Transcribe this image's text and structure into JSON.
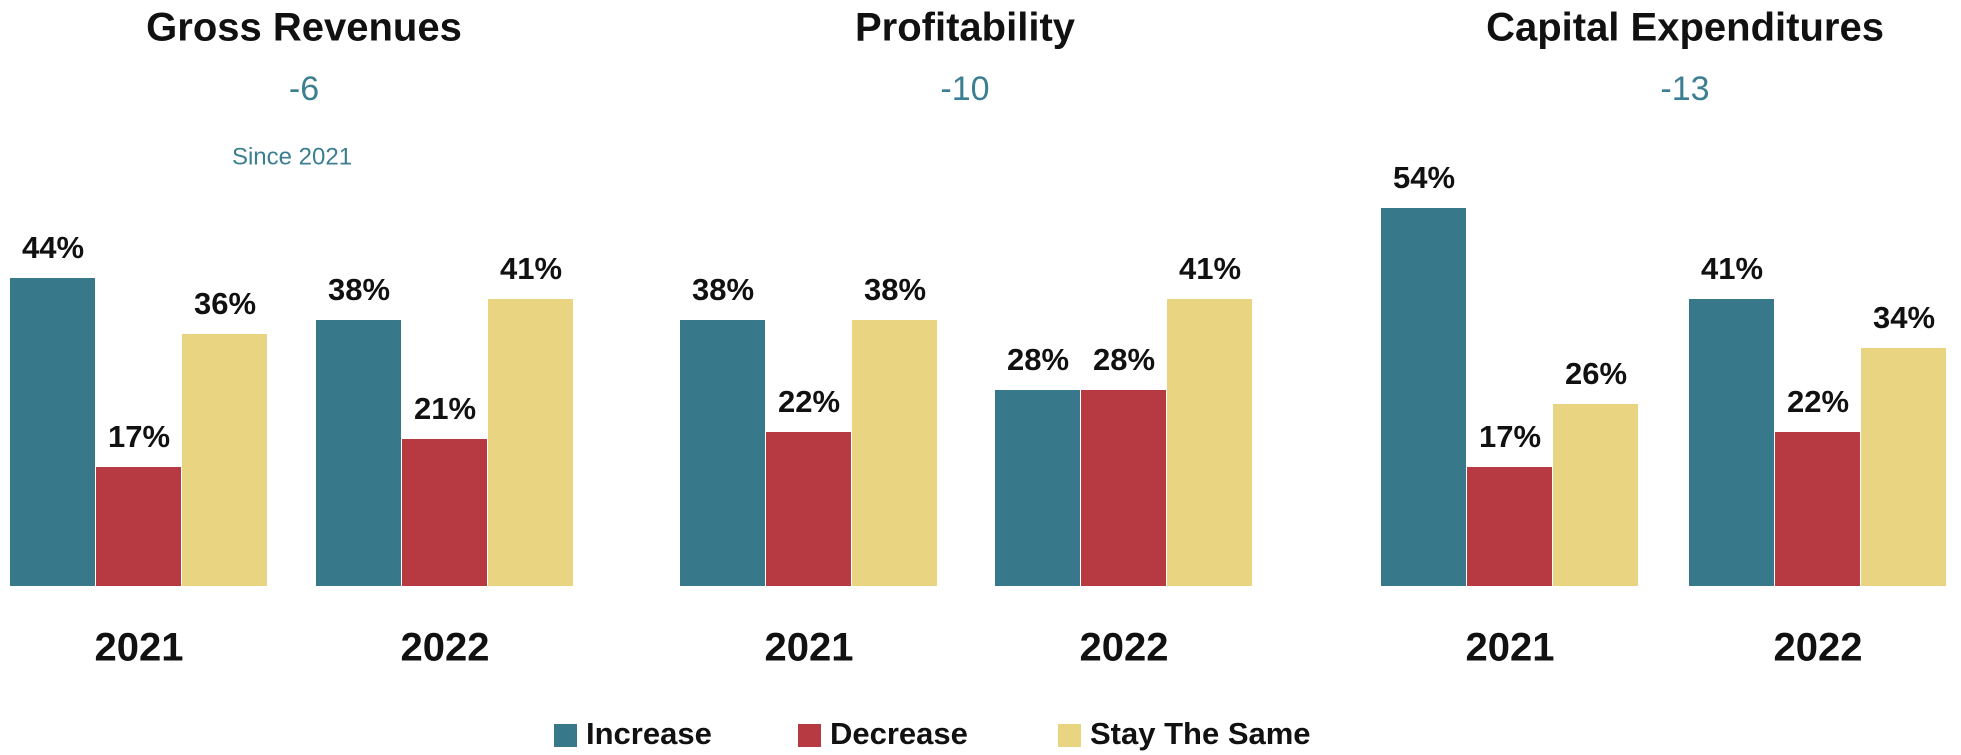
{
  "chart_data": [
    {
      "type": "bar",
      "title": "Gross Revenues",
      "subtitle": "-6",
      "annotation": "Since 2021",
      "categories": [
        "2021",
        "2022"
      ],
      "series": [
        {
          "name": "Increase",
          "color": "#37788a",
          "values": [
            44,
            38
          ],
          "value_labels": [
            "44%",
            "38%"
          ]
        },
        {
          "name": "Decrease",
          "color": "#b73a42",
          "values": [
            17,
            21
          ],
          "value_labels": [
            "17%",
            "21%"
          ]
        },
        {
          "name": "Stay The Same",
          "color": "#e8d481",
          "values": [
            36,
            41
          ],
          "value_labels": [
            "36%",
            "41%"
          ]
        }
      ]
    },
    {
      "type": "bar",
      "title": "Profitability",
      "subtitle": "-10",
      "categories": [
        "2021",
        "2022"
      ],
      "series": [
        {
          "name": "Increase",
          "color": "#37788a",
          "values": [
            38,
            28
          ],
          "value_labels": [
            "38%",
            "28%"
          ]
        },
        {
          "name": "Decrease",
          "color": "#b73a42",
          "values": [
            22,
            28
          ],
          "value_labels": [
            "22%",
            "28%"
          ]
        },
        {
          "name": "Stay The Same",
          "color": "#e8d481",
          "values": [
            38,
            41
          ],
          "value_labels": [
            "38%",
            "41%"
          ]
        }
      ]
    },
    {
      "type": "bar",
      "title": "Capital Expenditures",
      "subtitle": "-13",
      "categories": [
        "2021",
        "2022"
      ],
      "series": [
        {
          "name": "Increase",
          "color": "#37788a",
          "values": [
            54,
            41
          ],
          "value_labels": [
            "54%",
            "41%"
          ]
        },
        {
          "name": "Decrease",
          "color": "#b73a42",
          "values": [
            17,
            22
          ],
          "value_labels": [
            "17%",
            "22%"
          ]
        },
        {
          "name": "Stay The Same",
          "color": "#e8d481",
          "values": [
            26,
            34
          ],
          "value_labels": [
            "26%",
            "34%"
          ]
        }
      ]
    }
  ]
}
